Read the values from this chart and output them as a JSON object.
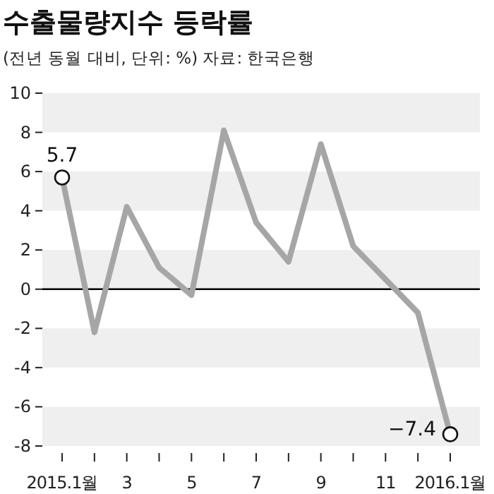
{
  "chart_data": {
    "type": "line",
    "title": "수출물량지수 등락률",
    "subtitle": "(전년 동월 대비, 단위: %) 자료: 한국은행",
    "categories": [
      "2015.1월",
      null,
      "3",
      null,
      "5",
      null,
      "7",
      null,
      "9",
      null,
      "11",
      null,
      "2016.1월"
    ],
    "series": [
      {
        "color": "#a6a6a6",
        "values": [
          5.7,
          -2.2,
          4.2,
          1.1,
          -0.3,
          8.1,
          3.4,
          1.4,
          7.4,
          2.2,
          0.5,
          -1.2,
          -7.4
        ],
        "value_labels": [
          "5.7",
          null,
          null,
          null,
          null,
          null,
          null,
          null,
          null,
          null,
          null,
          null,
          "−7.4"
        ]
      }
    ],
    "ylim": [
      -8,
      10
    ],
    "yticks": [
      -8,
      -6,
      -4,
      -2,
      0,
      2,
      4,
      6,
      8,
      10
    ],
    "bands": [
      {
        "axis": "y",
        "from": 8,
        "to": 10,
        "color": "#efefef"
      },
      {
        "axis": "y",
        "from": 4,
        "to": 6,
        "color": "#efefef"
      },
      {
        "axis": "y",
        "from": 0,
        "to": 2,
        "color": "#efefef"
      },
      {
        "axis": "y",
        "from": -4,
        "to": -2,
        "color": "#efefef"
      },
      {
        "axis": "y",
        "from": -8,
        "to": -6,
        "color": "#efefef"
      }
    ],
    "ref_lines": [
      {
        "axis": "y",
        "value": 0,
        "color": "#000000"
      }
    ],
    "grid": false
  }
}
